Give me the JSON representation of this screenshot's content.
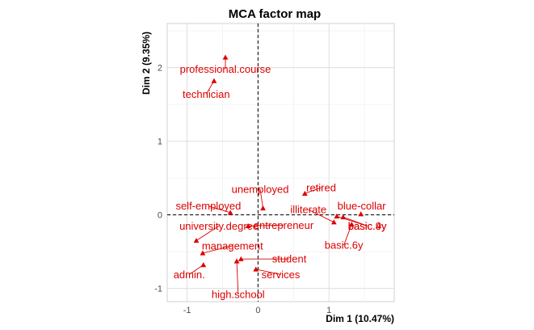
{
  "chart_data": {
    "type": "scatter",
    "title": "MCA factor map",
    "xlabel": "Dim 1 (10.47%)",
    "ylabel": "Dim 2 (9.35%)",
    "xlim": [
      -1.28,
      1.92
    ],
    "ylim": [
      -1.18,
      2.6
    ],
    "x_ticks": [
      -1,
      0,
      1
    ],
    "y_ticks": [
      -1,
      0,
      1,
      2
    ],
    "grid": true,
    "reference_lines": {
      "x": 0,
      "y": 0
    },
    "point_color": "#dd0000",
    "points": [
      {
        "label": "professional.course",
        "x": -0.46,
        "y": 2.14,
        "lx": -0.46,
        "ly": 1.98
      },
      {
        "label": "technician",
        "x": -0.62,
        "y": 1.82,
        "lx": -0.73,
        "ly": 1.64
      },
      {
        "label": "retired",
        "x": 0.66,
        "y": 0.29,
        "lx": 0.89,
        "ly": 0.37
      },
      {
        "label": "unemployed",
        "x": 0.07,
        "y": 0.09,
        "lx": 0.03,
        "ly": 0.35
      },
      {
        "label": "illiterate",
        "x": 1.07,
        "y": -0.1,
        "lx": 0.71,
        "ly": 0.07
      },
      {
        "label": "blue-collar",
        "x": 1.45,
        "y": 0.01,
        "lx": 1.46,
        "ly": 0.12
      },
      {
        "label": "self-employed",
        "x": -0.39,
        "y": 0.03,
        "lx": -0.7,
        "ly": 0.12
      },
      {
        "label": "entrepreneur",
        "x": -0.14,
        "y": -0.15,
        "lx": 0.36,
        "ly": -0.14
      },
      {
        "label": "university.degree",
        "x": -0.87,
        "y": -0.35,
        "lx": -0.55,
        "ly": -0.15
      },
      {
        "label": "basic.4y",
        "x": 1.11,
        "y": -0.02,
        "lx": 1.54,
        "ly": -0.15
      },
      {
        "label": "basic.9y",
        "x": 1.2,
        "y": -0.03,
        "lx": 1.54,
        "ly": -0.15
      },
      {
        "label": "basic.6y",
        "x": 1.32,
        "y": -0.13,
        "lx": 1.21,
        "ly": -0.41
      },
      {
        "label": "management",
        "x": -0.78,
        "y": -0.52,
        "lx": -0.36,
        "ly": -0.42
      },
      {
        "label": "student",
        "x": -0.24,
        "y": -0.6,
        "lx": 0.44,
        "ly": -0.6
      },
      {
        "label": "admin.",
        "x": -0.77,
        "y": -0.68,
        "lx": -0.97,
        "ly": -0.81
      },
      {
        "label": "services",
        "x": -0.03,
        "y": -0.74,
        "lx": 0.32,
        "ly": -0.81
      },
      {
        "label": "high.school",
        "x": -0.3,
        "y": -0.63,
        "lx": -0.28,
        "ly": -1.08
      }
    ]
  }
}
